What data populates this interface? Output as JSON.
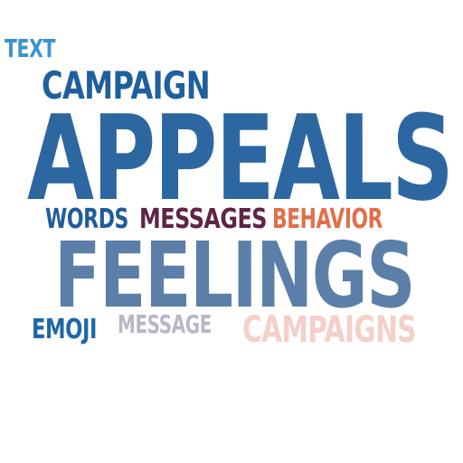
{
  "words": [
    {
      "id": "text",
      "text": "TEXT",
      "color": "#3a93d1"
    },
    {
      "id": "campaign",
      "text": "CAMPAIGN",
      "color": "#1f5f9e"
    },
    {
      "id": "appeals",
      "text": "APPEALS",
      "color": "#2d67a2"
    },
    {
      "id": "words",
      "text": "WORDS",
      "color": "#1f5c9b"
    },
    {
      "id": "messages",
      "text": "MESSAGES",
      "color": "#5e2446"
    },
    {
      "id": "behavior",
      "text": "BEHAVIOR",
      "color": "#e0704a"
    },
    {
      "id": "feelings",
      "text": "FEELINGS",
      "color": "#5b7fa8"
    },
    {
      "id": "emoji",
      "text": "EMOJI",
      "color": "#1e67a8"
    },
    {
      "id": "message",
      "text": "MESSAGE",
      "color": "#b9b7c6"
    },
    {
      "id": "campaigns",
      "text": "CAMPAIGNS",
      "color": "#f4d0c8"
    }
  ]
}
